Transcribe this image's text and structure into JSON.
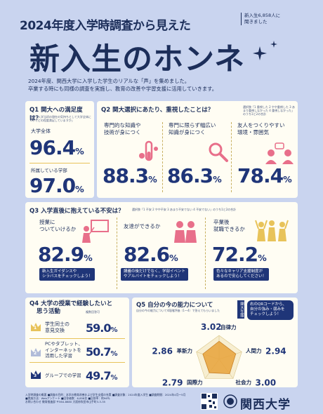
{
  "header": {
    "title_line1": "2024年度入学時調査から見えた",
    "title_main": "新入生のホンネ",
    "badge_line1": "新入生6,858人に",
    "badge_line2": "聞きました",
    "intro_line1": "2024年度、関西大学に入学した学生のリアルな「声」を集めました。",
    "intro_line2": "卒業する時にも同様の調査を実施し、教育の改善や学習支援に活用していきます。"
  },
  "q1": {
    "title": "Q1 関大への満足度は？",
    "note": "質問「入学当初の現在の気持ちとして大学全体についてどの程度満足していますか」",
    "label1": "大学全体",
    "value1": "96.4",
    "label2": "所属している学部",
    "value2": "97.0",
    "unit": "%"
  },
  "q2": {
    "title": "Q2 関大選択にあたり、重視したことは？",
    "note": "選択肢「1 重視した 2 やや重視した 3 あまり重視しなかった 4 重視しなかった」のうち1と2の合計",
    "items": [
      {
        "label_line1": "専門的な知識や",
        "label_line2": "技術が身につく",
        "value": "88.3",
        "icon": "test-tube-icon"
      },
      {
        "label_line1": "専門に限らず幅広い",
        "label_line2": "知識が身につく",
        "value": "86.3",
        "icon": "magnifier-icon"
      },
      {
        "label_line1": "友人をつくりやすい",
        "label_line2": "環境・雰囲気",
        "value": "78.4",
        "icon": "chat-people-icon"
      }
    ],
    "unit": "%"
  },
  "q3": {
    "title": "Q3 入学直後に抱えている不安は？",
    "note": "選択肢「1 不安 2 やや不安 3 あまり不安でない 4 不安でない」のうち1と2の合計",
    "items": [
      {
        "label_line1": "授業に",
        "label_line2": "ついていけるか",
        "value": "82.9",
        "pill_line1": "新入生ガイダンスや",
        "pill_line2": "シラバスをチェックしよう！",
        "icon": "presentation-icon"
      },
      {
        "label_line1": "友達ができるか",
        "label_line2": "",
        "value": "82.6",
        "pill_line1": "講義の後だけでなく、学部イベント",
        "pill_line2": "やアルバイトをチェックしよう！",
        "icon": "friends-icon"
      },
      {
        "label_line1": "卒業後",
        "label_line2": "就職できるか",
        "value": "72.2",
        "pill_line1": "色々なキャリア支援制度が",
        "pill_line2": "あるので安心してください！",
        "icon": "cheering-people-icon"
      }
    ],
    "unit": "%"
  },
  "q4": {
    "title_line1": "Q4 大学の授業で経験したいと",
    "title_line2": "思う活動",
    "note": "複数回答可",
    "items": [
      {
        "rank": "1",
        "label_line1": "学生同士の",
        "label_line2": "意見交換",
        "value": "59.0"
      },
      {
        "rank": "2",
        "label_line1": "PCやタブレット、",
        "label_line2": "インターネットを",
        "label_line3": "活用した学習",
        "value": "50.7"
      },
      {
        "rank": "3",
        "label_line1": "グループでの学習",
        "label_line2": "",
        "value": "49.7"
      }
    ],
    "unit": "%"
  },
  "q5": {
    "title": "Q5 自分の今の能力について",
    "note": "自分の今の能力について4段階評価（1〜4）で答えてもらいました",
    "qr_tag": "関大生版",
    "qr_text_line1": "右のQRコードから、",
    "qr_text_line2": "自分の強み・弱みを",
    "qr_text_line3": "チェックしよう！",
    "axes": [
      {
        "name": "自律力",
        "value": "3.02"
      },
      {
        "name": "人間力",
        "value": "2.94"
      },
      {
        "name": "社会力",
        "value": "3.00"
      },
      {
        "name": "国際力",
        "value": "2.79"
      },
      {
        "name": "革新力",
        "value": "2.86"
      }
    ]
  },
  "footer": {
    "line1": "入学時調査の概要 ■調査の目的：本学の教育改善および学生支援の充実 ■調査対象：2024年度入学生 ■調査期間：2024年4月〜5月",
    "line2": "■実施方法：Webアンケート ■回答者数：6,858名 ■回答率：約96％",
    "line3": "お問い合わせ 教育推進部 〒564-8680 大阪府吹田市山手町3-3-35",
    "logo": "関西大学"
  },
  "colors": {
    "background": "#c9d4ef",
    "card": "#fffdf3",
    "navy": "#1f3578",
    "accent_yellow": "#e8c35a",
    "icon_pink": "#e86f8a"
  }
}
